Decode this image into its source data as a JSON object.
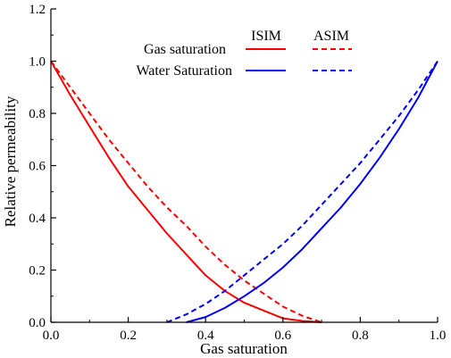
{
  "chart_data": {
    "type": "line",
    "title": "",
    "xlabel": "Gas saturation",
    "ylabel": "Relative permeability",
    "xlim": [
      0.0,
      1.0
    ],
    "ylim": [
      0.0,
      1.2
    ],
    "xticks": [
      0.0,
      0.2,
      0.4,
      0.6,
      0.8,
      1.0
    ],
    "yticks": [
      0.0,
      0.2,
      0.4,
      0.6,
      0.8,
      1.0,
      1.2
    ],
    "xtick_labels": [
      "0.0",
      "0.2",
      "0.4",
      "0.6",
      "0.8",
      "1.0"
    ],
    "ytick_labels": [
      "0.0",
      "0.2",
      "0.4",
      "0.6",
      "0.8",
      "1.0",
      "1.2"
    ],
    "grid": false,
    "legend": {
      "placement": "top-right",
      "column_headers": [
        "ISIM",
        "ASIM"
      ],
      "row_labels": [
        "Gas saturation",
        "Water Saturation"
      ]
    },
    "series": [
      {
        "model": "ISIM",
        "phase": "Gas saturation",
        "color": "#ff0000",
        "dash": "solid",
        "x": [
          0.0,
          0.05,
          0.1,
          0.15,
          0.2,
          0.25,
          0.3,
          0.35,
          0.4,
          0.45,
          0.5,
          0.55,
          0.6,
          0.65,
          0.7
        ],
        "y": [
          1.0,
          0.87,
          0.75,
          0.63,
          0.52,
          0.43,
          0.34,
          0.26,
          0.18,
          0.12,
          0.075,
          0.045,
          0.015,
          0.005,
          0.0
        ]
      },
      {
        "model": "ASIM",
        "phase": "Gas saturation",
        "color": "#ff0000",
        "dash": "dashed",
        "x": [
          0.0,
          0.05,
          0.1,
          0.15,
          0.2,
          0.25,
          0.3,
          0.35,
          0.4,
          0.45,
          0.5,
          0.55,
          0.6,
          0.65,
          0.7
        ],
        "y": [
          1.0,
          0.9,
          0.8,
          0.7,
          0.61,
          0.52,
          0.44,
          0.37,
          0.29,
          0.22,
          0.16,
          0.11,
          0.06,
          0.025,
          0.0
        ]
      },
      {
        "model": "ISIM",
        "phase": "Water Saturation",
        "color": "#0000ff",
        "dash": "solid",
        "x": [
          0.35,
          0.4,
          0.45,
          0.5,
          0.55,
          0.6,
          0.65,
          0.7,
          0.75,
          0.8,
          0.85,
          0.9,
          0.95,
          1.0
        ],
        "y": [
          0.0,
          0.02,
          0.055,
          0.1,
          0.15,
          0.21,
          0.28,
          0.36,
          0.44,
          0.53,
          0.63,
          0.74,
          0.86,
          1.0
        ]
      },
      {
        "model": "ASIM",
        "phase": "Water Saturation",
        "color": "#0000ff",
        "dash": "dashed",
        "x": [
          0.3,
          0.35,
          0.4,
          0.45,
          0.5,
          0.55,
          0.6,
          0.65,
          0.7,
          0.75,
          0.8,
          0.85,
          0.9,
          0.95,
          1.0
        ],
        "y": [
          0.0,
          0.03,
          0.07,
          0.12,
          0.18,
          0.24,
          0.3,
          0.37,
          0.45,
          0.53,
          0.61,
          0.7,
          0.79,
          0.89,
          1.0
        ]
      }
    ]
  }
}
